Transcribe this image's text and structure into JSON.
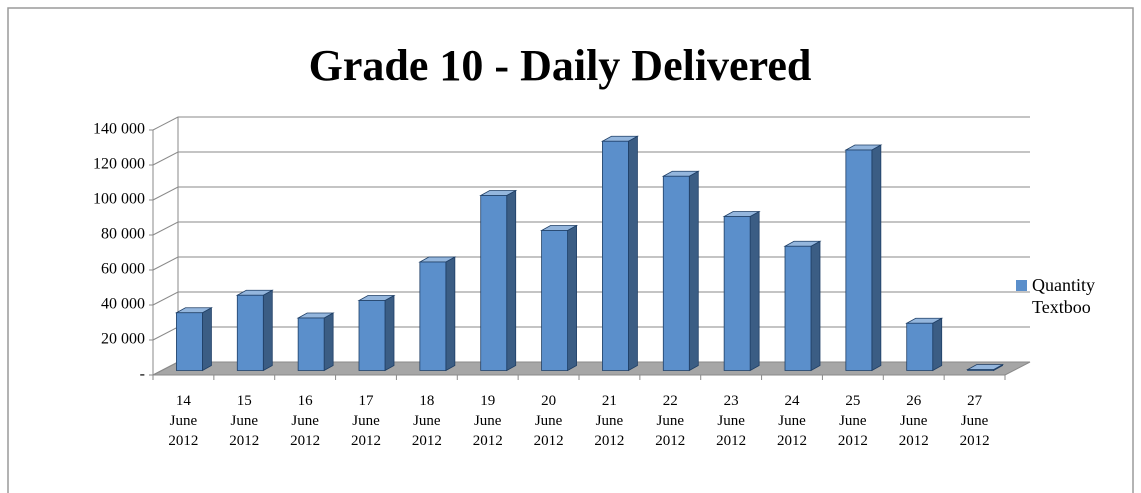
{
  "chart_data": {
    "type": "bar3d",
    "title": "Grade 10 - Daily Delivered",
    "categories": [
      "14 June 2012",
      "15 June 2012",
      "16 June 2012",
      "17 June 2012",
      "18 June 2012",
      "19 June 2012",
      "20 June 2012",
      "21 June 2012",
      "22 June 2012",
      "23 June 2012",
      "24 June 2012",
      "25 June 2012",
      "26 June 2012",
      "27 June 2012"
    ],
    "series": [
      {
        "name": "Quantity Textboo",
        "color": "#5b8fcb",
        "values": [
          33000,
          43000,
          30000,
          40000,
          62000,
          100000,
          80000,
          131000,
          111000,
          88000,
          71000,
          126000,
          27000,
          500
        ]
      }
    ],
    "ylim": [
      0,
      140000
    ],
    "yticks": [
      {
        "value": 0,
        "label": "-"
      },
      {
        "value": 20000,
        "label": "20 000"
      },
      {
        "value": 40000,
        "label": "40 000"
      },
      {
        "value": 60000,
        "label": "60 000"
      },
      {
        "value": 80000,
        "label": "80 000"
      },
      {
        "value": 100000,
        "label": "100 000"
      },
      {
        "value": 120000,
        "label": "120 000"
      },
      {
        "value": 140000,
        "label": "140 000"
      }
    ],
    "grid": true,
    "legend": "right"
  }
}
